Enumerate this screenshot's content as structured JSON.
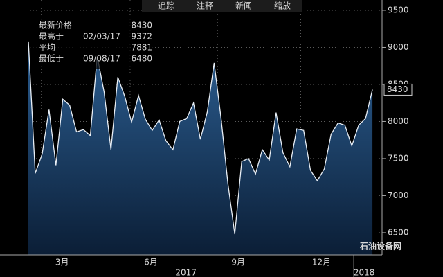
{
  "toolbar": [
    "追踪",
    "注释",
    "新闻",
    "缩放"
  ],
  "watermark": "石油设备网",
  "chart_data": {
    "type": "area",
    "categories": [
      null,
      null,
      null,
      null,
      null,
      null,
      null,
      null,
      null,
      null,
      null,
      null,
      null,
      null,
      null,
      null,
      null,
      null,
      null,
      null,
      null,
      null,
      null,
      null,
      null,
      null,
      null,
      null,
      null,
      null,
      null,
      null,
      null,
      null,
      null,
      null,
      null,
      null,
      null,
      null,
      null,
      null,
      null,
      null,
      null,
      null,
      null,
      null,
      null,
      null,
      null
    ],
    "series": [
      {
        "color": "#e8eef5",
        "values": [
          9080,
          7300,
          7560,
          8160,
          7410,
          8300,
          8220,
          7860,
          7890,
          7810,
          8880,
          8400,
          7620,
          8600,
          8340,
          7990,
          8350,
          8030,
          7880,
          8020,
          7740,
          7620,
          8000,
          8040,
          8250,
          7760,
          8130,
          8790,
          8040,
          7160,
          6480,
          7460,
          7500,
          7290,
          7620,
          7480,
          8120,
          7580,
          7390,
          7900,
          7880,
          7340,
          7200,
          7360,
          7830,
          7980,
          7950,
          7670,
          7950,
          8040,
          8430
        ]
      }
    ],
    "stats": [
      {
        "label": "最新价格",
        "value": 8430
      },
      {
        "label": "最高于",
        "date": "02/03/17",
        "value": 9372
      },
      {
        "label": "平均",
        "value": 7881
      },
      {
        "label": "最低于",
        "date": "09/08/17",
        "value": 6480
      }
    ],
    "xlim": [
      -0.1,
      51.4
    ],
    "xticks": [
      {
        "value": 4.9,
        "label": "3月"
      },
      {
        "value": 17.8,
        "label": "6月"
      },
      {
        "value": 30.5,
        "label": "9月"
      },
      {
        "value": 42.6,
        "label": "12月"
      }
    ],
    "year_labels": [
      {
        "value": 22.9,
        "label": "2017"
      },
      {
        "value": 48.8,
        "label": "2018"
      }
    ],
    "ylim": [
      6200,
      9640
    ],
    "yticks": [
      6500,
      7000,
      7500,
      8000,
      8500,
      9000,
      9500
    ],
    "grid": true
  }
}
